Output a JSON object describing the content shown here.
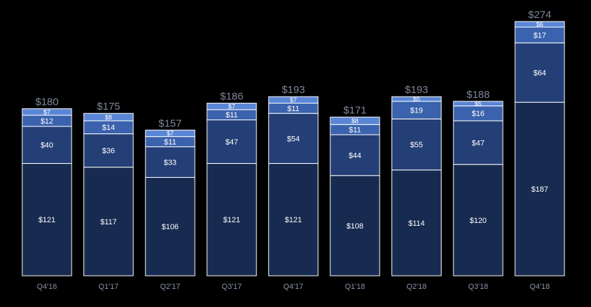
{
  "chart_data": {
    "type": "bar",
    "stacked": true,
    "title": "",
    "xlabel": "",
    "ylabel": "",
    "categories": [
      "Q4'16",
      "Q1'17",
      "Q2'17",
      "Q3'17",
      "Q4'17",
      "Q1'18",
      "Q2'18",
      "Q3'18",
      "Q4'18"
    ],
    "series": [
      {
        "color": "#172a4f",
        "values": [
          121,
          117,
          106,
          121,
          121,
          108,
          114,
          120,
          187
        ],
        "labels": [
          "$121",
          "$117",
          "$106",
          "$121",
          "$121",
          "$108",
          "$114",
          "$120",
          "$187"
        ]
      },
      {
        "color": "#243f75",
        "values": [
          40,
          36,
          33,
          47,
          54,
          44,
          55,
          47,
          64
        ],
        "labels": [
          "$40",
          "$36",
          "$33",
          "$47",
          "$54",
          "$44",
          "$55",
          "$47",
          "$64"
        ]
      },
      {
        "color": "#3a62ad",
        "values": [
          12,
          14,
          11,
          11,
          11,
          11,
          19,
          16,
          17
        ],
        "labels": [
          "$12",
          "$14",
          "$11",
          "$11",
          "$11",
          "$11",
          "$19",
          "$16",
          "$17"
        ]
      },
      {
        "color": "#5b86d6",
        "values": [
          7,
          8,
          7,
          7,
          7,
          8,
          5,
          5,
          6
        ],
        "labels": [
          "$7",
          "$8",
          "$7",
          "$7",
          "$7",
          "$8",
          "$5",
          "$5",
          "$6"
        ]
      }
    ],
    "totals": [
      180,
      175,
      157,
      186,
      193,
      171,
      193,
      188,
      274
    ],
    "total_labels": [
      "$180",
      "$175",
      "$157",
      "$186",
      "$193",
      "$171",
      "$193",
      "$188",
      "$274"
    ],
    "ylim": [
      0,
      274
    ],
    "grid": false,
    "legend": "none"
  }
}
